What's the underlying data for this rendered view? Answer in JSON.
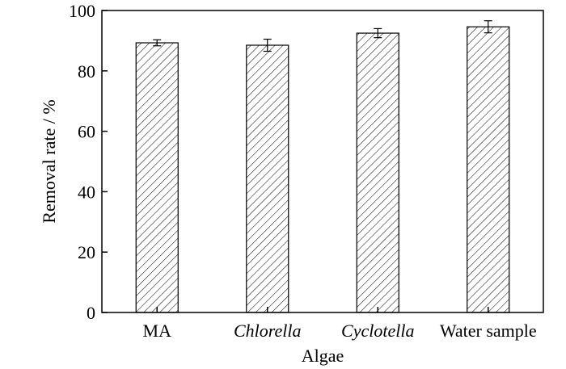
{
  "chart_data": {
    "type": "bar",
    "title": "",
    "xlabel": "Algae",
    "ylabel": "Removal rate / %",
    "categories": [
      "MA",
      "Chlorella",
      "Cyclotella",
      "Water sample"
    ],
    "category_italic": [
      false,
      true,
      true,
      false
    ],
    "values": [
      89.3,
      88.5,
      92.5,
      94.6
    ],
    "errors": [
      1.0,
      2.0,
      1.5,
      2.0
    ],
    "ylim": [
      0,
      100
    ],
    "yticks": [
      0,
      20,
      40,
      60,
      80,
      100
    ],
    "ytick_labels": [
      "0",
      "20",
      "40",
      "60",
      "80",
      "100"
    ],
    "grid": false,
    "bar_fill": "hatched",
    "colors": {
      "bar_stroke": "#000000",
      "hatch": "#000000",
      "background": "#ffffff"
    }
  }
}
